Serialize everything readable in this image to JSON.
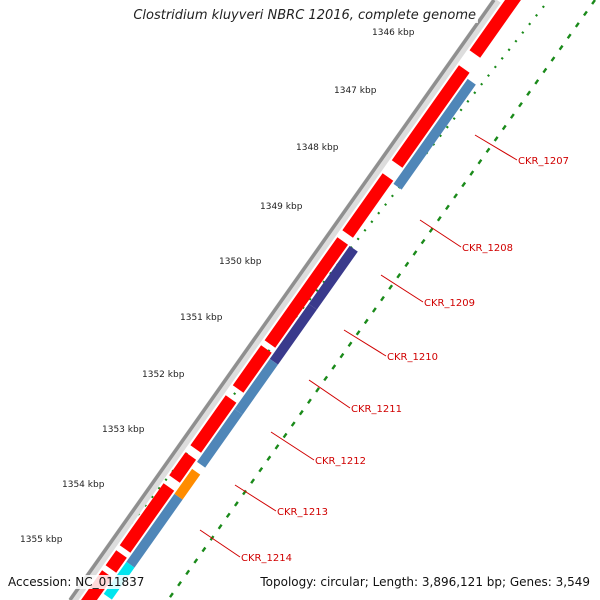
{
  "title": "Clostridium kluyveri NBRC 12016, complete genome",
  "footer": {
    "accession": "Accession: NC_011837",
    "topology": "Topology: circular; Length: 3,896,121 bp; Genes: 3,549"
  },
  "colors": {
    "backbone": "#9a9a9a",
    "forward_cds": "#ff0000",
    "reverse_cds": "#4f86b8",
    "reverse_cds_dark": "#3a3a8c",
    "orange_feature": "#ff8c00",
    "cyan_feature": "#00e5ee",
    "tick_dots": "#1a8a1a",
    "gene_label": "#d00000"
  },
  "scale": {
    "unit": "kbp",
    "ticks": [
      "1346 kbp",
      "1347 kbp",
      "1348 kbp",
      "1349 kbp",
      "1350 kbp",
      "1351 kbp",
      "1352 kbp",
      "1353 kbp",
      "1354 kbp",
      "1355 kbp"
    ]
  },
  "genes": [
    {
      "label": "CKR_1207"
    },
    {
      "label": "CKR_1208"
    },
    {
      "label": "CKR_1209"
    },
    {
      "label": "CKR_1210"
    },
    {
      "label": "CKR_1211"
    },
    {
      "label": "CKR_1212"
    },
    {
      "label": "CKR_1213"
    },
    {
      "label": "CKR_1214"
    }
  ]
}
